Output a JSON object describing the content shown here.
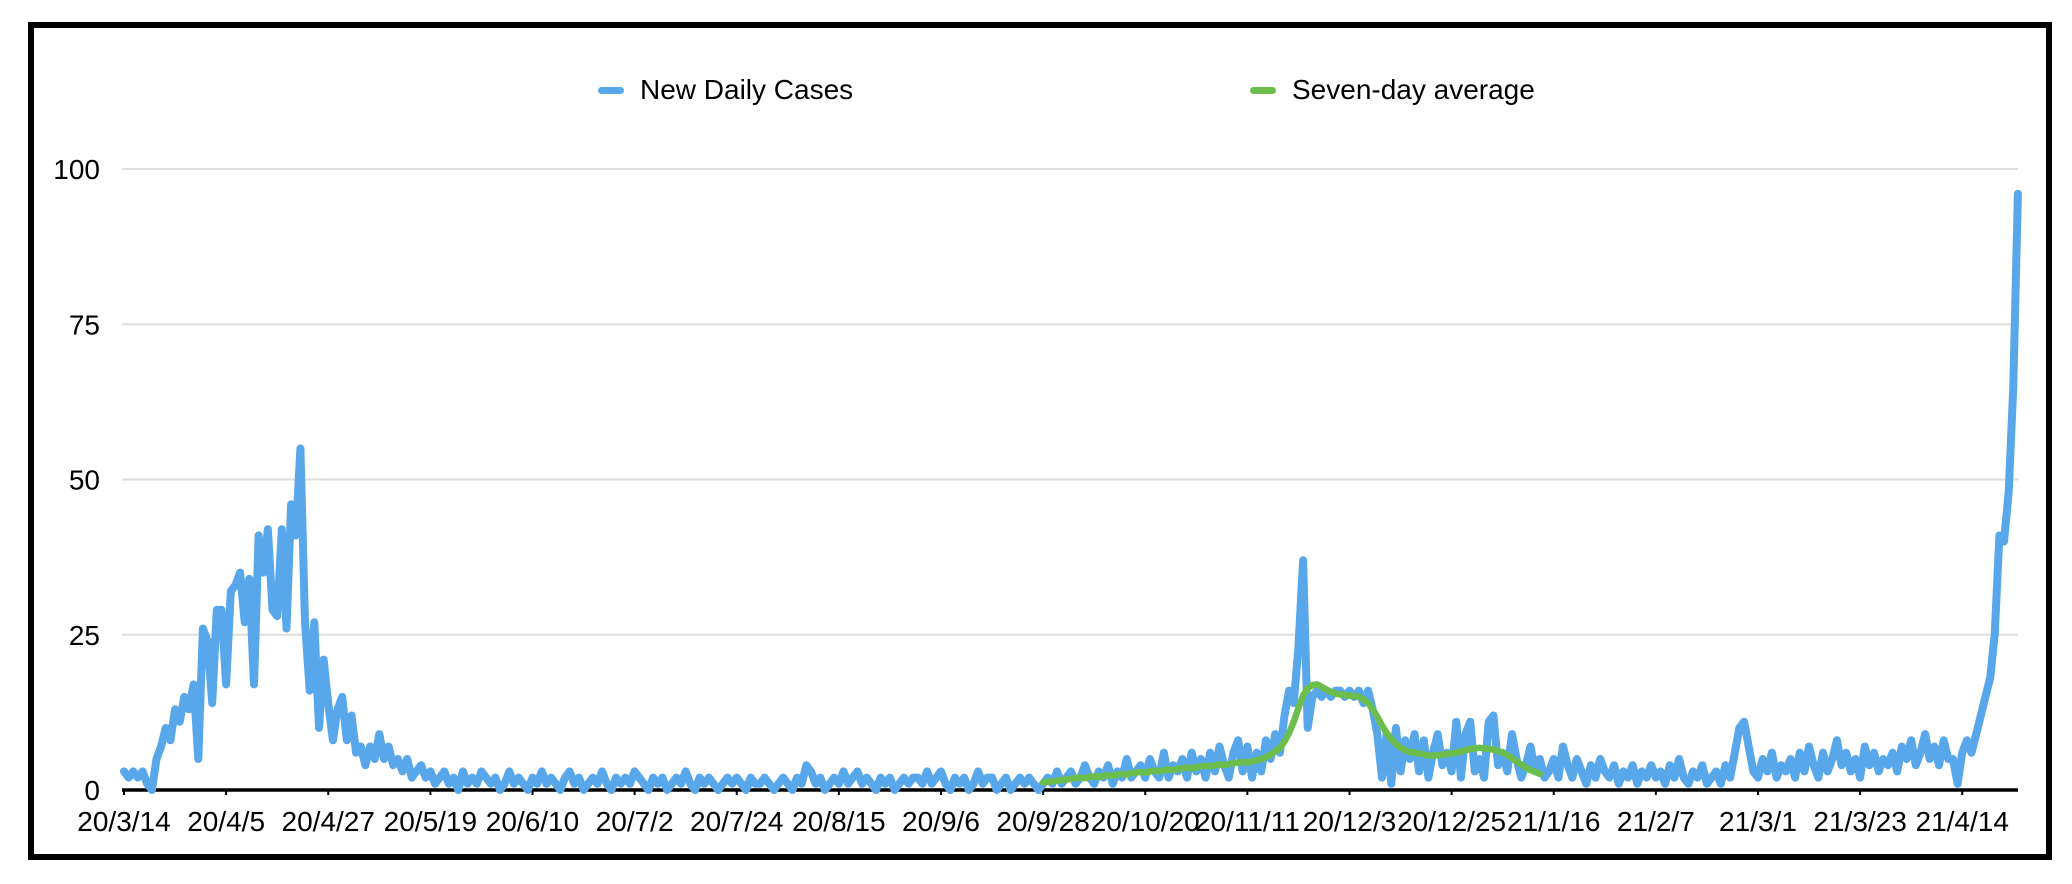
{
  "legend": {
    "items": [
      {
        "label": "New Daily Cases",
        "color": "#58A7EA"
      },
      {
        "label": "Seven-day average",
        "color": "#6BBE4B"
      }
    ]
  },
  "chart_data": {
    "type": "line",
    "title": "",
    "xlabel": "",
    "ylabel": "",
    "ylim": [
      0,
      100
    ],
    "y_ticks": [
      0,
      25,
      50,
      75,
      100
    ],
    "grid": true,
    "legend_position": "top",
    "x_tick_labels": [
      "20/3/14",
      "20/4/5",
      "20/4/27",
      "20/5/19",
      "20/6/10",
      "20/7/2",
      "20/7/24",
      "20/8/15",
      "20/9/6",
      "20/9/28",
      "20/10/20",
      "20/11/11",
      "20/12/3",
      "20/12/25",
      "21/1/16",
      "21/2/7",
      "21/3/1",
      "21/3/23",
      "21/4/14"
    ],
    "tick_interval_days": 22,
    "series": [
      {
        "name": "New Daily Cases",
        "color": "#58A7EA",
        "start_day": 0,
        "values": [
          3,
          2,
          3,
          2,
          3,
          1,
          0,
          5,
          7,
          10,
          8,
          13,
          11,
          15,
          13,
          17,
          5,
          26,
          24,
          14,
          29,
          29,
          17,
          32,
          33,
          35,
          27,
          34,
          17,
          41,
          35,
          42,
          29,
          28,
          42,
          26,
          46,
          41,
          55,
          27,
          16,
          27,
          10,
          21,
          14,
          8,
          13,
          15,
          8,
          12,
          6,
          7,
          4,
          7,
          5,
          9,
          5,
          7,
          4,
          5,
          3,
          5,
          2,
          3,
          4,
          2,
          3,
          1,
          2,
          3,
          1,
          2,
          0,
          3,
          1,
          2,
          1,
          3,
          2,
          1,
          2,
          0,
          1,
          3,
          1,
          2,
          1,
          0,
          2,
          1,
          3,
          1,
          2,
          1,
          0,
          2,
          3,
          1,
          2,
          0,
          1,
          2,
          1,
          3,
          1,
          0,
          2,
          1,
          2,
          1,
          3,
          2,
          1,
          0,
          2,
          1,
          2,
          0,
          1,
          2,
          1,
          3,
          1,
          0,
          2,
          1,
          2,
          1,
          0,
          1,
          2,
          1,
          2,
          1,
          0,
          2,
          1,
          1,
          2,
          1,
          0,
          1,
          2,
          1,
          0,
          2,
          1,
          4,
          3,
          1,
          2,
          0,
          1,
          2,
          1,
          3,
          1,
          2,
          3,
          1,
          2,
          1,
          0,
          2,
          1,
          2,
          0,
          1,
          2,
          1,
          2,
          2,
          1,
          3,
          1,
          2,
          3,
          1,
          0,
          2,
          1,
          2,
          0,
          1,
          3,
          1,
          2,
          2,
          0,
          1,
          2,
          0,
          1,
          2,
          1,
          2,
          1,
          0,
          1,
          2,
          1,
          3,
          1,
          2,
          3,
          1,
          2,
          4,
          2,
          1,
          3,
          2,
          4,
          1,
          3,
          2,
          5,
          2,
          3,
          4,
          2,
          5,
          3,
          2,
          6,
          2,
          4,
          3,
          5,
          2,
          6,
          3,
          5,
          2,
          6,
          3,
          7,
          4,
          2,
          6,
          8,
          3,
          7,
          2,
          6,
          3,
          8,
          5,
          9,
          6,
          12,
          16,
          14,
          23,
          37,
          10,
          15,
          16,
          15,
          16,
          15,
          16,
          16,
          15,
          16,
          15,
          16,
          14,
          16,
          13,
          9,
          2,
          9,
          1,
          10,
          3,
          8,
          5,
          9,
          3,
          8,
          2,
          6,
          9,
          4,
          6,
          3,
          11,
          2,
          9,
          11,
          3,
          5,
          2,
          11,
          12,
          4,
          6,
          3,
          9,
          5,
          2,
          4,
          7,
          3,
          5,
          2,
          3,
          5,
          2,
          7,
          4,
          2,
          5,
          3,
          1,
          4,
          2,
          5,
          3,
          2,
          4,
          1,
          3,
          2,
          4,
          1,
          3,
          2,
          4,
          2,
          3,
          1,
          4,
          2,
          5,
          2,
          1,
          3,
          2,
          4,
          1,
          2,
          3,
          1,
          4,
          2,
          6,
          10,
          11,
          7,
          3,
          2,
          5,
          3,
          6,
          2,
          4,
          3,
          5,
          2,
          6,
          3,
          7,
          4,
          2,
          6,
          3,
          5,
          8,
          4,
          6,
          3,
          5,
          2,
          7,
          4,
          6,
          3,
          5,
          4,
          6,
          3,
          7,
          5,
          8,
          4,
          6,
          9,
          5,
          7,
          4,
          8,
          5,
          5,
          1,
          6,
          8,
          6,
          9,
          12,
          15,
          18,
          25,
          41,
          40,
          48,
          65,
          96
        ]
      },
      {
        "name": "Seven-day average",
        "color": "#6BBE4B",
        "start_day": 198,
        "values": [
          1.2,
          1.3,
          1.4,
          1.5,
          1.6,
          1.7,
          1.8,
          1.9,
          2.0,
          1.9,
          2.1,
          2.2,
          2.1,
          2.3,
          2.4,
          2.3,
          2.5,
          2.6,
          2.5,
          2.7,
          2.8,
          2.9,
          2.8,
          3.0,
          3.1,
          3.0,
          3.2,
          3.3,
          3.2,
          3.4,
          3.5,
          3.6,
          3.5,
          3.7,
          3.8,
          3.9,
          3.8,
          4.0,
          4.1,
          4.0,
          4.2,
          4.3,
          4.4,
          4.5,
          4.4,
          4.6,
          4.8,
          5.0,
          5.3,
          5.7,
          6.2,
          6.8,
          7.8,
          9.2,
          11.0,
          13.2,
          15.2,
          16.4,
          16.9,
          17.0,
          16.6,
          16.2,
          15.8,
          15.5,
          15.4,
          15.3,
          15.2,
          15.1,
          15.0,
          14.6,
          14.0,
          13.0,
          11.8,
          10.4,
          9.2,
          8.2,
          7.4,
          6.8,
          6.4,
          6.1,
          6.0,
          5.9,
          5.7,
          5.6,
          5.5,
          5.6,
          5.7,
          5.8,
          5.9,
          6.0,
          6.2,
          6.4,
          6.6,
          6.7,
          6.8,
          6.7,
          6.6,
          6.5,
          6.3,
          6.0,
          5.6,
          5.1,
          4.6,
          4.1,
          3.6,
          3.2,
          2.9,
          2.6
        ]
      }
    ]
  }
}
